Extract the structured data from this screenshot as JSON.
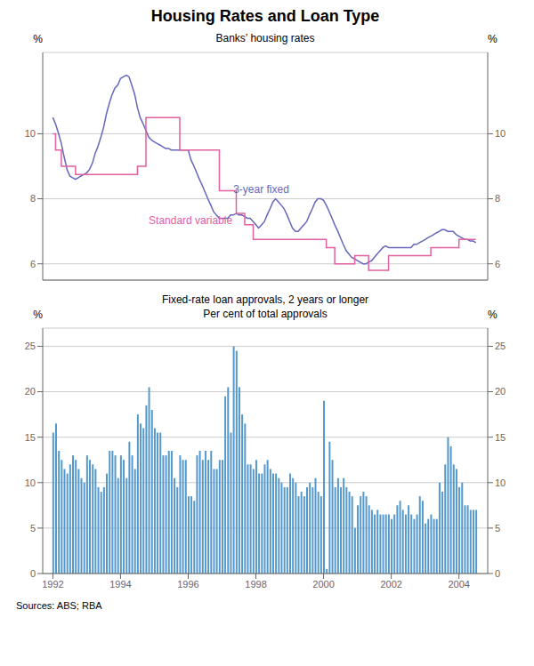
{
  "chart_data": [
    {
      "type": "line",
      "title": "Housing Rates and Loan Type",
      "subtitle": "Banks’ housing rates",
      "ylabel": "%",
      "y2label": "%",
      "xlim": [
        1991.7,
        2004.85
      ],
      "ylim": [
        5.5,
        12.5
      ],
      "yticks": [
        6,
        8,
        10
      ],
      "y2lim": [
        5.5,
        12.5
      ],
      "y2ticks": [
        6,
        8,
        10
      ],
      "grid": true,
      "tick_labels": "y",
      "series": [
        {
          "name": "3-year fixed",
          "color": "#6666bb",
          "line_style": "solid",
          "x": [
            1992.0,
            1992.08,
            1992.17,
            1992.25,
            1992.33,
            1992.42,
            1992.5,
            1992.58,
            1992.67,
            1992.75,
            1992.83,
            1992.92,
            1993.0,
            1993.08,
            1993.17,
            1993.25,
            1993.33,
            1993.42,
            1993.5,
            1993.58,
            1993.67,
            1993.75,
            1993.83,
            1993.92,
            1994.0,
            1994.08,
            1994.17,
            1994.25,
            1994.33,
            1994.42,
            1994.5,
            1994.58,
            1994.67,
            1994.75,
            1994.83,
            1994.92,
            1995.0,
            1995.08,
            1995.17,
            1995.25,
            1995.33,
            1995.42,
            1995.5,
            1995.58,
            1995.67,
            1995.75,
            1995.83,
            1995.92,
            1996.0,
            1996.08,
            1996.17,
            1996.25,
            1996.33,
            1996.42,
            1996.5,
            1996.58,
            1996.67,
            1996.75,
            1996.83,
            1996.92,
            1997.0,
            1997.08,
            1997.17,
            1997.25,
            1997.33,
            1997.42,
            1997.5,
            1997.58,
            1997.67,
            1997.75,
            1997.83,
            1997.92,
            1998.0,
            1998.08,
            1998.17,
            1998.25,
            1998.33,
            1998.42,
            1998.5,
            1998.58,
            1998.67,
            1998.75,
            1998.83,
            1998.92,
            1999.0,
            1999.08,
            1999.17,
            1999.25,
            1999.33,
            1999.42,
            1999.5,
            1999.58,
            1999.67,
            1999.75,
            1999.83,
            1999.92,
            2000.0,
            2000.08,
            2000.17,
            2000.25,
            2000.33,
            2000.42,
            2000.5,
            2000.58,
            2000.67,
            2000.75,
            2000.83,
            2000.92,
            2001.0,
            2001.08,
            2001.17,
            2001.25,
            2001.33,
            2001.42,
            2001.5,
            2001.58,
            2001.67,
            2001.75,
            2001.83,
            2001.92,
            2002.0,
            2002.08,
            2002.17,
            2002.25,
            2002.33,
            2002.42,
            2002.5,
            2002.58,
            2002.67,
            2002.75,
            2002.83,
            2002.92,
            2003.0,
            2003.08,
            2003.17,
            2003.25,
            2003.33,
            2003.42,
            2003.5,
            2003.58,
            2003.67,
            2003.75,
            2003.83,
            2003.92,
            2004.0,
            2004.08,
            2004.17,
            2004.25,
            2004.33,
            2004.42,
            2004.5
          ],
          "values": [
            10.5,
            10.3,
            10.0,
            9.7,
            9.3,
            8.9,
            8.7,
            8.65,
            8.6,
            8.65,
            8.7,
            8.75,
            8.8,
            8.9,
            9.1,
            9.4,
            9.6,
            9.9,
            10.2,
            10.6,
            10.95,
            11.2,
            11.4,
            11.5,
            11.7,
            11.75,
            11.8,
            11.75,
            11.5,
            11.2,
            10.8,
            10.5,
            10.3,
            10.1,
            9.9,
            9.8,
            9.75,
            9.7,
            9.65,
            9.6,
            9.55,
            9.55,
            9.5,
            9.5,
            9.5,
            9.5,
            9.5,
            9.5,
            9.5,
            9.2,
            9.0,
            8.8,
            8.6,
            8.4,
            8.2,
            8.0,
            7.8,
            7.6,
            7.5,
            7.4,
            7.4,
            7.4,
            7.4,
            7.5,
            7.5,
            7.55,
            7.5,
            7.5,
            7.45,
            7.4,
            7.4,
            7.3,
            7.2,
            7.1,
            7.2,
            7.3,
            7.5,
            7.7,
            7.9,
            8.0,
            7.9,
            7.8,
            7.7,
            7.5,
            7.3,
            7.1,
            7.0,
            7.0,
            7.1,
            7.2,
            7.3,
            7.5,
            7.7,
            7.9,
            8.0,
            8.0,
            7.95,
            7.8,
            7.6,
            7.4,
            7.2,
            7.0,
            6.8,
            6.6,
            6.4,
            6.3,
            6.2,
            6.15,
            6.1,
            6.05,
            6.0,
            6.0,
            6.05,
            6.1,
            6.2,
            6.3,
            6.4,
            6.5,
            6.55,
            6.5,
            6.5,
            6.5,
            6.5,
            6.5,
            6.5,
            6.5,
            6.5,
            6.5,
            6.6,
            6.6,
            6.65,
            6.7,
            6.75,
            6.8,
            6.85,
            6.9,
            6.95,
            7.0,
            7.05,
            7.05,
            7.0,
            7.0,
            7.0,
            6.9,
            6.85,
            6.8,
            6.75,
            6.75,
            6.7,
            6.7,
            6.65
          ]
        },
        {
          "name": "Standard variable",
          "color": "#e060a0",
          "line_style": "step",
          "x": [
            1992.0,
            1992.08,
            1992.25,
            1992.42,
            1992.67,
            1992.92,
            1993.17,
            1993.42,
            1993.67,
            1994.25,
            1994.5,
            1994.75,
            1995.0,
            1995.25,
            1995.5,
            1995.75,
            1995.92,
            1996.17,
            1996.42,
            1996.67,
            1996.92,
            1997.17,
            1997.42,
            1997.67,
            1997.92,
            1998.08,
            1998.42,
            1999.33,
            1999.5,
            1999.67,
            1999.92,
            2000.08,
            2000.33,
            2000.58,
            2000.92,
            2001.08,
            2001.33,
            2001.58,
            2001.75,
            2001.92,
            2002.08,
            2002.25,
            2002.5,
            2002.75,
            2003.0,
            2003.17,
            2003.33,
            2003.58,
            2003.83,
            2004.0,
            2004.25,
            2004.5
          ],
          "values": [
            10.0,
            9.5,
            9.0,
            9.0,
            8.75,
            8.75,
            8.75,
            8.75,
            8.75,
            8.75,
            9.0,
            10.5,
            10.5,
            10.5,
            10.5,
            9.5,
            9.5,
            9.5,
            9.5,
            9.5,
            8.25,
            8.25,
            7.55,
            7.2,
            6.75,
            6.75,
            6.75,
            6.75,
            6.75,
            6.75,
            6.75,
            6.5,
            6.0,
            6.0,
            6.25,
            6.25,
            5.8,
            5.8,
            5.8,
            6.25,
            6.25,
            6.25,
            6.25,
            6.25,
            6.25,
            6.5,
            6.5,
            6.5,
            6.5,
            6.75,
            6.75,
            6.75
          ]
        }
      ]
    },
    {
      "type": "bar",
      "title": "Fixed-rate loan approvals, 2 years or longer",
      "subtitle": "Per cent of total approvals",
      "ylabel": "%",
      "y2label": "%",
      "color": "#5599cc",
      "xlim": [
        1991.7,
        2004.85
      ],
      "xticks": [
        1992,
        1994,
        1996,
        1998,
        2000,
        2002,
        2004
      ],
      "ylim": [
        0,
        27
      ],
      "yticks": [
        0,
        5,
        10,
        15,
        20,
        25
      ],
      "y2lim": [
        0,
        27
      ],
      "y2ticks": [
        0,
        5,
        10,
        15,
        20,
        25
      ],
      "grid": true,
      "annotations": [
        "Sources: ABS; RBA"
      ],
      "x": [
        1992.0,
        1992.083,
        1992.167,
        1992.25,
        1992.333,
        1992.417,
        1992.5,
        1992.583,
        1992.667,
        1992.75,
        1992.833,
        1992.917,
        1993.0,
        1993.083,
        1993.167,
        1993.25,
        1993.333,
        1993.417,
        1993.5,
        1993.583,
        1993.667,
        1993.75,
        1993.833,
        1993.917,
        1994.0,
        1994.083,
        1994.167,
        1994.25,
        1994.333,
        1994.417,
        1994.5,
        1994.583,
        1994.667,
        1994.75,
        1994.833,
        1994.917,
        1995.0,
        1995.083,
        1995.167,
        1995.25,
        1995.333,
        1995.417,
        1995.5,
        1995.583,
        1995.667,
        1995.75,
        1995.833,
        1995.917,
        1996.0,
        1996.083,
        1996.167,
        1996.25,
        1996.333,
        1996.417,
        1996.5,
        1996.583,
        1996.667,
        1996.75,
        1996.833,
        1996.917,
        1997.0,
        1997.083,
        1997.167,
        1997.25,
        1997.333,
        1997.417,
        1997.5,
        1997.583,
        1997.667,
        1997.75,
        1997.833,
        1997.917,
        1998.0,
        1998.083,
        1998.167,
        1998.25,
        1998.333,
        1998.417,
        1998.5,
        1998.583,
        1998.667,
        1998.75,
        1998.833,
        1998.917,
        1999.0,
        1999.083,
        1999.167,
        1999.25,
        1999.333,
        1999.417,
        1999.5,
        1999.583,
        1999.667,
        1999.75,
        1999.833,
        1999.917,
        2000.0,
        2000.083,
        2000.167,
        2000.25,
        2000.333,
        2000.417,
        2000.5,
        2000.583,
        2000.667,
        2000.75,
        2000.833,
        2000.917,
        2001.0,
        2001.083,
        2001.167,
        2001.25,
        2001.333,
        2001.417,
        2001.5,
        2001.583,
        2001.667,
        2001.75,
        2001.833,
        2001.917,
        2002.0,
        2002.083,
        2002.167,
        2002.25,
        2002.333,
        2002.417,
        2002.5,
        2002.583,
        2002.667,
        2002.75,
        2002.833,
        2002.917,
        2003.0,
        2003.083,
        2003.167,
        2003.25,
        2003.333,
        2003.417,
        2003.5,
        2003.583,
        2003.667,
        2003.75,
        2003.833,
        2003.917,
        2004.0,
        2004.083,
        2004.167,
        2004.25,
        2004.333,
        2004.417,
        2004.5
      ],
      "values": [
        15.5,
        16.5,
        13.5,
        12.5,
        11.5,
        11.0,
        12.0,
        13.0,
        12.5,
        11.5,
        10.5,
        10.0,
        13.0,
        12.5,
        12.0,
        11.5,
        9.5,
        9.0,
        9.5,
        11.0,
        13.5,
        13.5,
        13.0,
        10.5,
        13.0,
        12.5,
        10.5,
        14.5,
        13.0,
        11.5,
        17.5,
        16.5,
        16.0,
        18.5,
        20.5,
        18.0,
        16.0,
        15.5,
        15.5,
        13.0,
        13.0,
        13.5,
        13.5,
        10.5,
        9.5,
        13.0,
        12.5,
        12.5,
        8.5,
        8.5,
        8.0,
        13.0,
        13.5,
        12.5,
        13.5,
        12.5,
        13.5,
        11.5,
        11.5,
        12.5,
        12.5,
        19.5,
        20.5,
        15.5,
        25.0,
        24.5,
        20.5,
        17.5,
        16.5,
        12.0,
        12.0,
        11.5,
        12.5,
        11.0,
        11.0,
        12.0,
        12.5,
        11.5,
        11.0,
        11.0,
        10.5,
        10.0,
        9.5,
        9.5,
        11.0,
        10.5,
        10.0,
        8.5,
        9.0,
        8.5,
        9.5,
        10.0,
        9.5,
        10.5,
        9.0,
        8.5,
        19.0,
        0.5,
        14.5,
        12.5,
        9.5,
        10.5,
        9.5,
        10.5,
        9.5,
        9.0,
        8.5,
        5.0,
        7.5,
        8.5,
        9.0,
        8.5,
        7.5,
        7.0,
        6.5,
        7.0,
        6.5,
        6.5,
        6.5,
        6.5,
        6.0,
        6.5,
        7.5,
        8.0,
        7.0,
        6.5,
        7.5,
        6.5,
        6.0,
        6.5,
        8.5,
        8.0,
        5.5,
        6.0,
        6.5,
        6.0,
        6.0,
        10.0,
        9.0,
        12.0,
        15.0,
        14.0,
        12.0,
        11.5,
        9.5,
        10.0,
        7.5,
        7.5,
        7.0,
        7.0,
        7.0
      ]
    }
  ]
}
